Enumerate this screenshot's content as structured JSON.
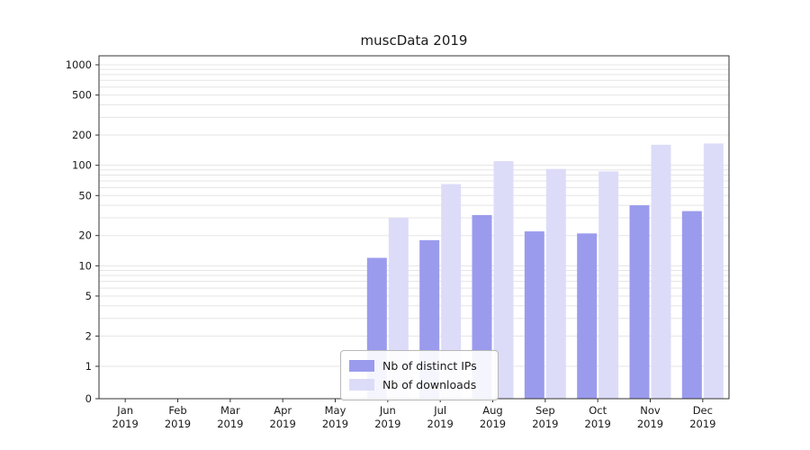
{
  "title": "muscData 2019",
  "chart_data": {
    "type": "bar",
    "title": "muscData 2019",
    "categories": [
      "Jan",
      "Feb",
      "Mar",
      "Apr",
      "May",
      "Jun",
      "Jul",
      "Aug",
      "Sep",
      "Oct",
      "Nov",
      "Dec"
    ],
    "year": "2019",
    "series": [
      {
        "name": "Nb of distinct IPs",
        "color": "#9b9bee",
        "values": [
          0,
          0,
          0,
          0,
          0,
          12,
          18,
          32,
          22,
          21,
          40,
          35
        ]
      },
      {
        "name": "Nb of downloads",
        "color": "#dcdcf9",
        "values": [
          0,
          0,
          0,
          0,
          0,
          30,
          65,
          110,
          92,
          87,
          160,
          165
        ]
      }
    ],
    "yscale": "symlog",
    "y_ticks": [
      0,
      1,
      2,
      5,
      10,
      20,
      50,
      100,
      200,
      500,
      1000
    ],
    "ylim": [
      0,
      1200
    ],
    "grid": true,
    "legend_position": "lower-center-inside",
    "xlabel": "",
    "ylabel": ""
  },
  "colors": {
    "grid": "#e5e5e5",
    "axis": "#333333",
    "text": "#1a1a1a"
  }
}
